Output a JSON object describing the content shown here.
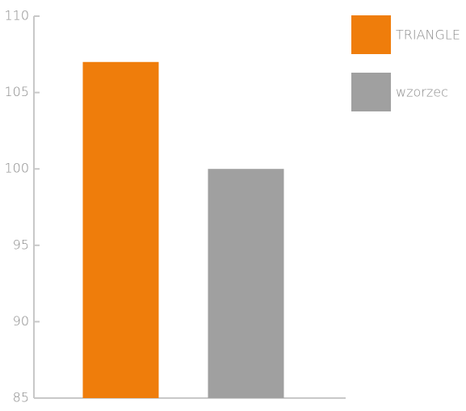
{
  "chart_data": {
    "type": "bar",
    "categories": [
      null
    ],
    "series": [
      {
        "name": "TRIANGLE",
        "color": "#ef7d0b",
        "values": [
          107
        ]
      },
      {
        "name": "wzorzec",
        "color": "#a0a0a0",
        "values": [
          100
        ]
      }
    ],
    "ylim": [
      85,
      110
    ],
    "yticks": [
      85,
      90,
      95,
      100,
      105,
      110
    ],
    "grid": false,
    "legend": "top-right"
  }
}
